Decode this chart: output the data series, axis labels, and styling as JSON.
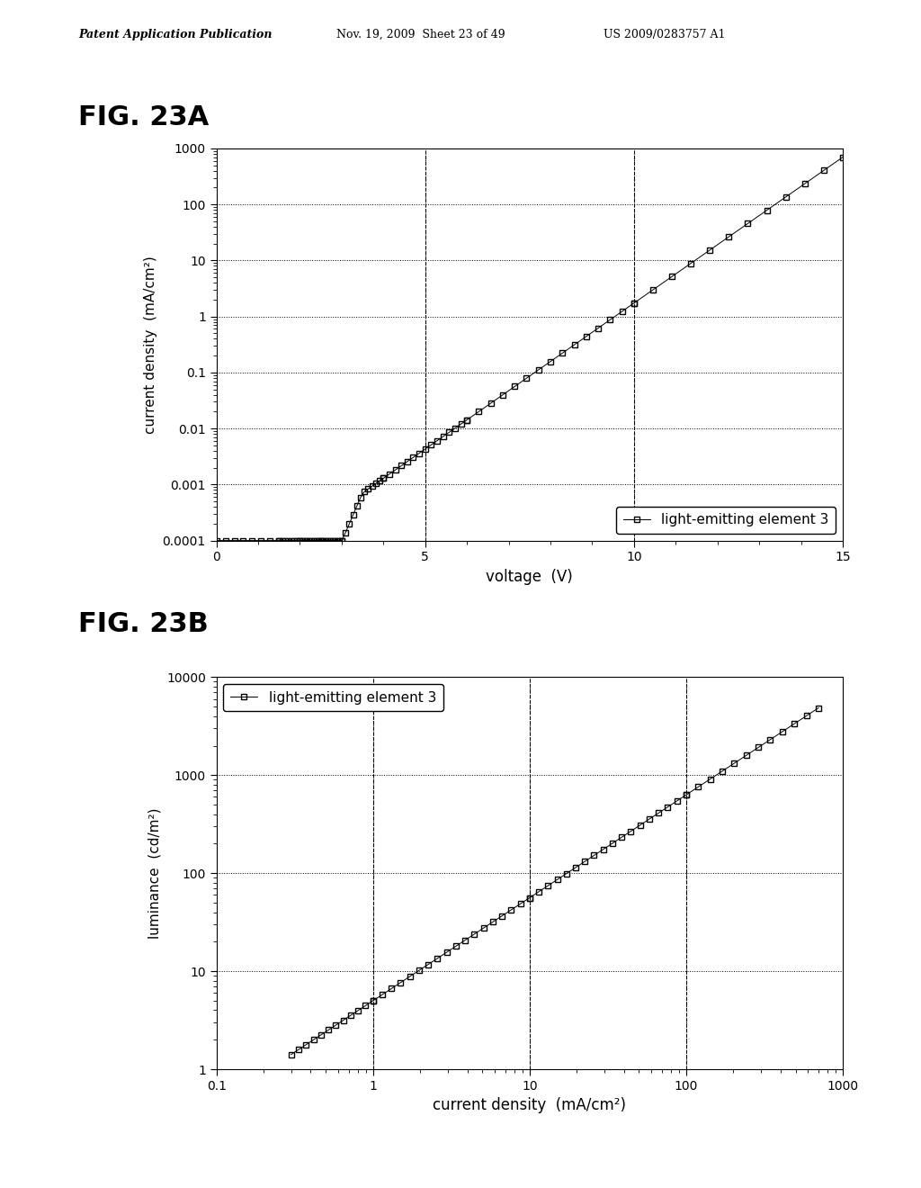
{
  "header_left": "Patent Application Publication",
  "header_mid": "Nov. 19, 2009  Sheet 23 of 49",
  "header_right": "US 2009/0283757 A1",
  "fig_label_A": "FIG. 23A",
  "fig_label_B": "FIG. 23B",
  "legend_label": "light-emitting element 3",
  "plot_A": {
    "xlabel": "voltage  (V)",
    "ylabel": "current density  (mA/cm²)",
    "xlim": [
      0,
      15
    ],
    "ylim_log": [
      0.0001,
      1000
    ],
    "xticks": [
      0,
      5,
      10,
      15
    ],
    "ytick_vals": [
      0.0001,
      0.001,
      0.01,
      0.1,
      1,
      10,
      100,
      1000
    ],
    "ytick_labels": [
      "0.0001",
      "0.001",
      "0.01",
      "0.1",
      "1",
      "10",
      "100",
      "1000"
    ]
  },
  "plot_B": {
    "xlabel": "current density  (mA/cm²)",
    "ylabel": "luminance  (cd/m²)",
    "xlim_log": [
      0.1,
      1000
    ],
    "ylim_log": [
      1,
      10000
    ],
    "xtick_vals": [
      0.1,
      1,
      10,
      100,
      1000
    ],
    "xtick_labels": [
      "0.1",
      "1",
      "10",
      "100",
      "1000"
    ],
    "ytick_vals": [
      1,
      10,
      100,
      1000,
      10000
    ],
    "ytick_labels": [
      "1",
      "10",
      "100",
      "1000",
      "10000"
    ]
  },
  "line_color": "#000000",
  "marker": "s",
  "marker_size": 4,
  "bg_color": "#ffffff",
  "grid_color": "#000000"
}
